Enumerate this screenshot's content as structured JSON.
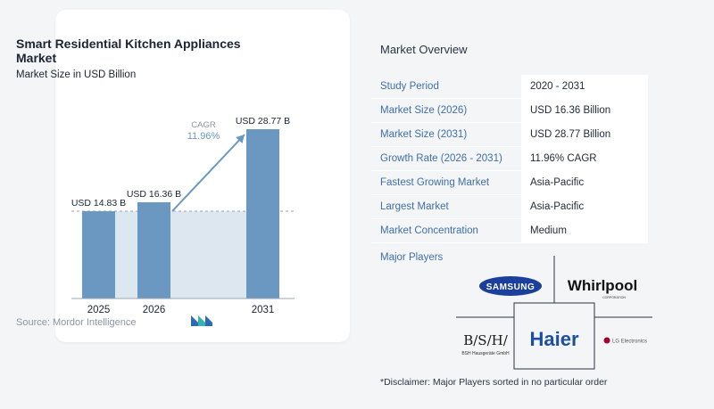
{
  "chart_data": {
    "type": "bar",
    "title": "Smart Residential Kitchen Appliances Market",
    "subtitle": "Market Size in USD Billion",
    "categories": [
      "2025",
      "2026",
      "2031"
    ],
    "values": [
      14.83,
      16.36,
      28.77
    ],
    "value_labels": [
      "USD 14.83 B",
      "USD 16.36 B",
      "USD 28.77 B"
    ],
    "ylim": [
      0,
      28.77
    ],
    "cagr_label": "CAGR",
    "cagr_value": "11.96%",
    "colors": {
      "bar": "#6a98c1",
      "bar_light": "#dde7f0",
      "arrow": "#6a98c1",
      "baseline": "#9aa6b2"
    },
    "grid": false
  },
  "source": "Source: Mordor Intelligence",
  "overview": {
    "title": "Market Overview",
    "rows": [
      {
        "key": "Study Period",
        "value": "2020 - 2031"
      },
      {
        "key": "Market Size (2026)",
        "value": "USD 16.36 Billion"
      },
      {
        "key": "Market Size (2031)",
        "value": "USD 28.77 Billion"
      },
      {
        "key": "Growth Rate (2026 - 2031)",
        "value": "11.96% CAGR"
      },
      {
        "key": "Fastest Growing Market",
        "value": "Asia-Pacific"
      },
      {
        "key": "Largest Market",
        "value": "Asia-Pacific"
      },
      {
        "key": "Market Concentration",
        "value": "Medium"
      }
    ],
    "players_title": "Major Players",
    "players": {
      "samsung": "SAMSUNG",
      "whirlpool": "Whirlpool",
      "whirlpool_sub": "CORPORATION",
      "bsh": "B/S/H/",
      "bsh_sub": "BSH Hausgeräte GmbH",
      "haier": "Haier",
      "lg": "LG Electronics"
    },
    "disclaimer": "*Disclaimer: Major Players sorted in no particular order"
  }
}
